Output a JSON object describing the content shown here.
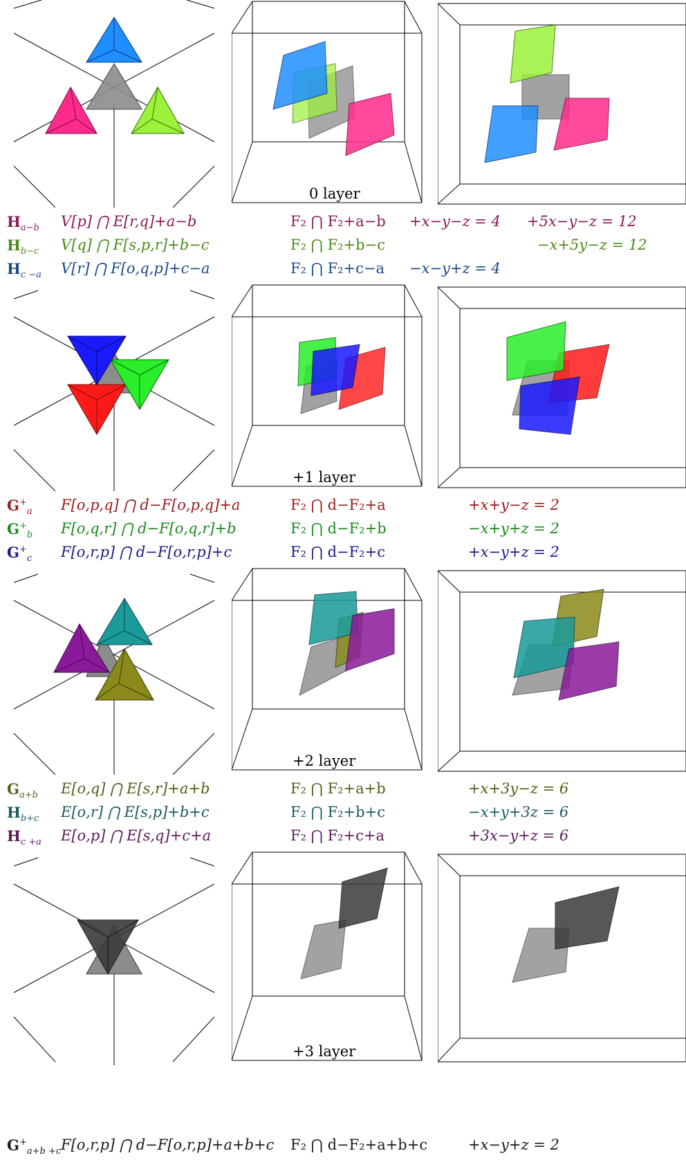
{
  "layers": [
    {
      "layer_label": "0 layer",
      "colors": [
        "#1f8fff",
        "#ff2a8c",
        "#9cf23a",
        "#8c8c8c"
      ],
      "rows": [
        {
          "sym": "H",
          "sub": "a−b",
          "sup": "",
          "formula": "V[p] ⋂ E[r,q]+a−b",
          "f2": "F₂ ⋂ F₂+a−b",
          "eq1": "+x−y−z = 4",
          "eq2": "+5x−y−z = 12",
          "color": "#8a1a55"
        },
        {
          "sym": "H",
          "sub": "b−c",
          "sup": "",
          "formula": "V[q] ⋂ F[s,p,r]+b−c",
          "f2": "F₂ ⋂ F₂+b−c",
          "eq1": "",
          "eq2": "−x+5y−z = 12",
          "color": "#4a8a1a"
        },
        {
          "sym": "H",
          "sub": "c −a",
          "sup": "",
          "formula": "V[r] ⋂ F[o,q,p]+c−a",
          "f2": "F₂ ⋂ F₂+c−a",
          "eq1": "−x−y+z = 4",
          "eq2": "",
          "color": "#1a4a8a"
        }
      ]
    },
    {
      "layer_label": "+1 layer",
      "colors": [
        "#1a1aff",
        "#ff1a1a",
        "#2aee2a",
        "#8c8c8c"
      ],
      "rows": [
        {
          "sym": "G",
          "sub": "a",
          "sup": "+",
          "formula": "F[o,p,q] ⋂ d−F[o,p,q]+a",
          "f2": "F₂ ⋂ d−F₂+a",
          "eq1": "+x+y−z = 2",
          "eq2": "",
          "color": "#9a1a1a"
        },
        {
          "sym": "G",
          "sub": "b",
          "sup": "+",
          "formula": "F[o,q,r] ⋂ d−F[o,q,r]+b",
          "f2": "F₂ ⋂ d−F₂+b",
          "eq1": "−x+y+z = 2",
          "eq2": "",
          "color": "#1a8a1a"
        },
        {
          "sym": "G",
          "sub": "c",
          "sup": "+",
          "formula": "F[o,r,p] ⋂ d−F[o,r,p]+c",
          "f2": "F₂ ⋂ d−F₂+c",
          "eq1": "+x−y+z = 2",
          "eq2": "",
          "color": "#1a1a8a"
        }
      ]
    },
    {
      "layer_label": "+2 layer",
      "colors": [
        "#1a9a9a",
        "#8a1a9a",
        "#8a8a1a",
        "#8c8c8c"
      ],
      "rows": [
        {
          "sym": "G",
          "sub": "a+b",
          "sup": "",
          "formula": "E[o,q] ⋂ E[s,r]+a+b",
          "f2": "F₂ ⋂ F₂+a+b",
          "eq1": "+x+3y−z = 6",
          "eq2": "",
          "color": "#5a5a1a"
        },
        {
          "sym": "H",
          "sub": "b+c",
          "sup": "",
          "formula": "E[o,r] ⋂ E[s,p]+b+c",
          "f2": "F₂ ⋂ F₂+b+c",
          "eq1": "−x+y+3z = 6",
          "eq2": "",
          "color": "#1a5a5a"
        },
        {
          "sym": "H",
          "sub": "c +a",
          "sup": "",
          "formula": "E[o,p] ⋂ E[s,q]+c+a",
          "f2": "F₂ ⋂ F₂+c+a",
          "eq1": "+3x−y+z = 6",
          "eq2": "",
          "color": "#5a1a5a"
        }
      ]
    },
    {
      "layer_label": "+3 layer",
      "colors": [
        "#3a3a3a",
        "#3a3a3a",
        "#3a3a3a",
        "#8c8c8c"
      ],
      "rows": [
        {
          "sym": "G",
          "sub": "a+b +c",
          "sup": "+",
          "formula": "F[o,r,p] ⋂ d−F[o,r,p]+a+b+c",
          "f2": "F₂ ⋂ d−F₂+a+b+c",
          "eq1": "+x−y+z = 2",
          "eq2": "",
          "color": "#1a1a1a"
        }
      ]
    }
  ]
}
